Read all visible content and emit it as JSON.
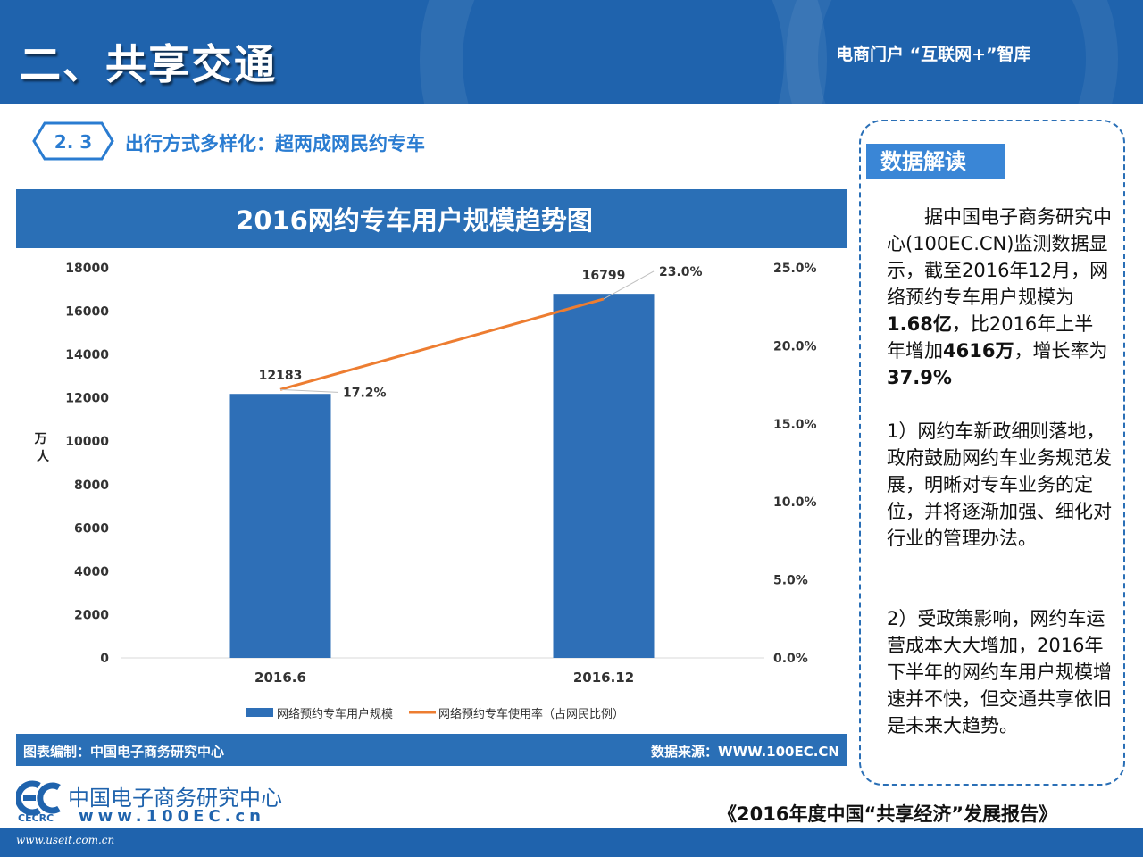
{
  "header": {
    "title": "二、共享交通",
    "right_text": "电商门户 “互联网+”智库"
  },
  "section": {
    "number": "2. 3",
    "title": "出行方式多样化：超两成网民约专车"
  },
  "chart_data": {
    "type": "bar",
    "title": "2016网约专车用户规模趋势图",
    "categories": [
      "2016.6",
      "2016.12"
    ],
    "ylabel": "万人",
    "ylim": [
      0,
      18000
    ],
    "yticks": [
      "0",
      "2000",
      "4000",
      "6000",
      "8000",
      "10000",
      "12000",
      "14000",
      "16000",
      "18000"
    ],
    "y2lim": [
      0,
      25
    ],
    "y2ticks": [
      "0.0%",
      "5.0%",
      "10.0%",
      "15.0%",
      "20.0%",
      "25.0%"
    ],
    "series": [
      {
        "name": "网络预约专车用户规模",
        "type": "bar",
        "axis": "left",
        "values": [
          12183,
          16799
        ],
        "labels": [
          "12183",
          "16799"
        ],
        "color": "#2e6fb7"
      },
      {
        "name": "网络预约专车使用率（占网民比例）",
        "type": "line",
        "axis": "right",
        "values": [
          17.2,
          23.0
        ],
        "labels": [
          "17.2%",
          "23.0%"
        ],
        "color": "#ed7d31"
      }
    ],
    "title_bar_color": "#2a6fb6",
    "grid": false,
    "legend": "bottom"
  },
  "chart_footer": {
    "credit": "图表编制：中国电子商务研究中心",
    "source": "数据来源：WWW.100EC.CN"
  },
  "side_panel": {
    "tag": "数据解读",
    "p1_a": "据中国电子商务研究中心(100EC.CN)监测数据显示，截至2016年12月，网络预约专车用户规模为",
    "p1_b": "1.68亿",
    "p1_c": "，比2016年上半年增加",
    "p1_d": "4616万",
    "p1_e": "，增长率为",
    "p1_f": "37.9%",
    "p2": "1）网约车新政细则落地，政府鼓励网约车业务规范发展，明晰对专车业务的定位，并将逐渐加强、细化对行业的管理办法。",
    "p3": "2）受政策影响，网约车运营成本大大增加，2016年下半年的网约车用户规模增速并不快，但交通共享依旧是未来大趋势。"
  },
  "logo": {
    "cn_name": "中国电子商务研究中心",
    "url": "www.100EC.cn",
    "abbr": "CECRC"
  },
  "report_title": "《2016年度中国“共享经济”发展报告》",
  "watermark": "www.useit.com.cn",
  "colors": {
    "brand": "#1f63ad",
    "accent": "#2a7cd1",
    "bar": "#2e6fb7",
    "line": "#ed7d31"
  }
}
